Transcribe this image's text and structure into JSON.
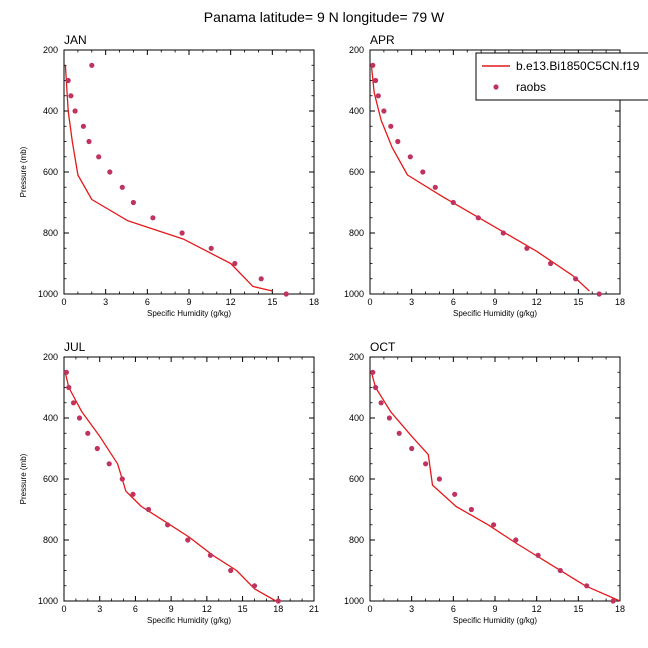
{
  "figure": {
    "title": "Panama  latitude= 9 N longitude= 79 W"
  },
  "legend": {
    "model_label": "b.e13.Bi1850C5CN.f19",
    "obs_label": "raobs",
    "model_color": "#e31a1c",
    "obs_color": "#c0335e"
  },
  "chart_data": [
    {
      "type": "line",
      "panel": "JAN",
      "xlabel": "Specific Humidity (g/kg)",
      "ylabel": "Pressure (mb)",
      "xlim": [
        0,
        18
      ],
      "ylim": [
        1000,
        200
      ],
      "xticks": [
        0,
        3,
        6,
        9,
        12,
        15,
        18
      ],
      "yticks": [
        200,
        400,
        600,
        800,
        1000
      ],
      "series": [
        {
          "name": "b.e13.Bi1850C5CN.f19",
          "kind": "line",
          "x": [
            0.1,
            0.3,
            0.6,
            1.0,
            2.0,
            4.6,
            8.6,
            12.0,
            13.6,
            15.0
          ],
          "y": [
            250,
            400,
            500,
            610,
            690,
            760,
            820,
            900,
            975,
            990
          ]
        },
        {
          "name": "raobs",
          "kind": "scatter",
          "x": [
            2.0,
            0.3,
            0.5,
            0.8,
            1.4,
            1.8,
            2.5,
            3.3,
            4.2,
            5.0,
            6.4,
            8.5,
            10.6,
            12.3,
            14.2,
            16.0
          ],
          "y": [
            250,
            300,
            350,
            400,
            450,
            500,
            550,
            600,
            650,
            700,
            750,
            800,
            850,
            900,
            950,
            1000
          ]
        }
      ]
    },
    {
      "type": "line",
      "panel": "APR",
      "xlabel": "Specific Humidity (g/kg)",
      "ylabel": "",
      "xlim": [
        0,
        18
      ],
      "ylim": [
        1000,
        200
      ],
      "xticks": [
        0,
        3,
        6,
        9,
        12,
        15,
        18
      ],
      "yticks": [
        200,
        400,
        600,
        800,
        1000
      ],
      "series": [
        {
          "name": "b.e13.Bi1850C5CN.f19",
          "kind": "line",
          "x": [
            0.1,
            0.3,
            0.8,
            1.6,
            2.7,
            5.2,
            8.6,
            12.0,
            14.6,
            15.8
          ],
          "y": [
            250,
            340,
            430,
            520,
            610,
            680,
            770,
            860,
            940,
            990
          ]
        },
        {
          "name": "raobs",
          "kind": "scatter",
          "x": [
            0.2,
            0.4,
            0.6,
            1.0,
            1.5,
            2.0,
            2.9,
            3.8,
            4.7,
            6.0,
            7.8,
            9.6,
            11.3,
            13.0,
            14.8,
            16.5
          ],
          "y": [
            250,
            300,
            350,
            400,
            450,
            500,
            550,
            600,
            650,
            700,
            750,
            800,
            850,
            900,
            950,
            1000
          ]
        }
      ]
    },
    {
      "type": "line",
      "panel": "JUL",
      "xlabel": "Specific Humidity (g/kg)",
      "ylabel": "Pressure (mb)",
      "xlim": [
        0,
        21
      ],
      "ylim": [
        1000,
        200
      ],
      "xticks": [
        0,
        3,
        6,
        9,
        12,
        15,
        18,
        21
      ],
      "yticks": [
        200,
        400,
        600,
        800,
        1000
      ],
      "series": [
        {
          "name": "b.e13.Bi1850C5CN.f19",
          "kind": "line",
          "x": [
            0.1,
            0.4,
            1.5,
            3.0,
            4.5,
            5.2,
            6.5,
            8.5,
            10.5,
            12.5,
            14.5,
            16.0,
            17.8
          ],
          "y": [
            250,
            300,
            380,
            460,
            550,
            640,
            690,
            740,
            790,
            850,
            900,
            960,
            1000
          ]
        },
        {
          "name": "raobs",
          "kind": "scatter",
          "x": [
            0.2,
            0.4,
            0.8,
            1.3,
            2.0,
            2.8,
            3.8,
            4.9,
            5.8,
            7.1,
            8.7,
            10.4,
            12.3,
            14.0,
            16.0,
            18.0
          ],
          "y": [
            250,
            300,
            350,
            400,
            450,
            500,
            550,
            600,
            650,
            700,
            750,
            800,
            850,
            900,
            950,
            1000
          ]
        }
      ]
    },
    {
      "type": "line",
      "panel": "OCT",
      "xlabel": "Specific Humidity (g/kg)",
      "ylabel": "",
      "xlim": [
        0,
        18
      ],
      "ylim": [
        1000,
        200
      ],
      "xticks": [
        0,
        3,
        6,
        9,
        12,
        15,
        18
      ],
      "yticks": [
        200,
        400,
        600,
        800,
        1000
      ],
      "series": [
        {
          "name": "b.e13.Bi1850C5CN.f19",
          "kind": "line",
          "x": [
            0.1,
            0.4,
            1.5,
            3.0,
            4.2,
            4.5,
            6.2,
            8.5,
            10.5,
            13.0,
            15.5,
            18.0
          ],
          "y": [
            250,
            300,
            380,
            460,
            520,
            620,
            690,
            750,
            810,
            880,
            950,
            1000
          ]
        },
        {
          "name": "raobs",
          "kind": "scatter",
          "x": [
            0.2,
            0.4,
            0.8,
            1.4,
            2.1,
            3.0,
            4.0,
            5.0,
            6.1,
            7.3,
            8.9,
            10.5,
            12.1,
            13.7,
            15.6,
            17.5
          ],
          "y": [
            250,
            300,
            350,
            400,
            450,
            500,
            550,
            600,
            650,
            700,
            750,
            800,
            850,
            900,
            950,
            1000
          ]
        }
      ]
    }
  ]
}
